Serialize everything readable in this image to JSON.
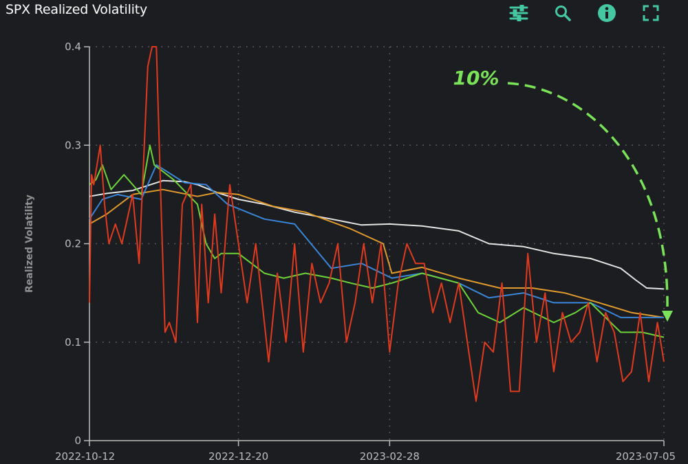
{
  "header": {
    "title": "SPX Realized Volatility",
    "tools": [
      {
        "icon": "sliders-icon"
      },
      {
        "icon": "zoom-icon"
      },
      {
        "icon": "info-icon"
      },
      {
        "icon": "fullscreen-icon"
      }
    ],
    "accent": "#45c7a2"
  },
  "chart_data": {
    "type": "line",
    "title": "SPX Realized Volatility",
    "xlabel": "",
    "ylabel": "Realized Volatility",
    "xlim": [
      "2022-10-12",
      "2023-07-05"
    ],
    "ylim": [
      0,
      0.4
    ],
    "yticks": [
      "0",
      "0.1",
      "0.2",
      "0.3",
      "0.4"
    ],
    "xticks": [
      "2022-10-12",
      "2022-12-20",
      "2023-02-28",
      "2023-07-05"
    ],
    "grid": true,
    "annotation": {
      "text": "10%",
      "color": "#7be35a"
    },
    "series": [
      {
        "color": "#e5e5e5",
        "x": [
          "2022-10-12",
          "2022-10-20",
          "2022-11-01",
          "2022-11-15",
          "2022-11-25",
          "2022-12-01",
          "2022-12-10",
          "2022-12-20",
          "2023-01-01",
          "2023-01-15",
          "2023-02-01",
          "2023-02-15",
          "2023-02-28",
          "2023-03-15",
          "2023-04-01",
          "2023-04-15",
          "2023-05-01",
          "2023-05-15",
          "2023-06-01",
          "2023-06-15",
          "2023-06-22",
          "2023-06-27",
          "2023-07-05"
        ],
        "y": [
          0.248,
          0.251,
          0.254,
          0.264,
          0.263,
          0.26,
          0.252,
          0.245,
          0.24,
          0.232,
          0.225,
          0.219,
          0.22,
          0.218,
          0.213,
          0.2,
          0.197,
          0.19,
          0.185,
          0.175,
          0.163,
          0.155,
          0.154
        ]
      },
      {
        "color": "#e09b2f",
        "x": [
          "2022-10-12",
          "2022-10-20",
          "2022-11-01",
          "2022-11-15",
          "2022-12-01",
          "2022-12-10",
          "2022-12-20",
          "2023-01-05",
          "2023-01-20",
          "2023-02-10",
          "2023-02-25",
          "2023-03-01",
          "2023-03-15",
          "2023-04-01",
          "2023-04-20",
          "2023-05-05",
          "2023-05-20",
          "2023-06-05",
          "2023-06-20",
          "2023-07-05"
        ],
        "y": [
          0.22,
          0.23,
          0.25,
          0.255,
          0.248,
          0.252,
          0.25,
          0.238,
          0.232,
          0.215,
          0.2,
          0.17,
          0.176,
          0.165,
          0.155,
          0.155,
          0.15,
          0.14,
          0.13,
          0.125
        ]
      },
      {
        "color": "#3a86d9",
        "x": [
          "2022-10-12",
          "2022-10-18",
          "2022-10-25",
          "2022-11-05",
          "2022-11-12",
          "2022-11-25",
          "2022-12-05",
          "2022-12-15",
          "2023-01-01",
          "2023-01-15",
          "2023-02-01",
          "2023-02-15",
          "2023-03-01",
          "2023-03-15",
          "2023-04-01",
          "2023-04-15",
          "2023-05-01",
          "2023-05-15",
          "2023-06-01",
          "2023-06-15",
          "2023-07-05"
        ],
        "y": [
          0.225,
          0.245,
          0.25,
          0.245,
          0.28,
          0.262,
          0.26,
          0.24,
          0.225,
          0.22,
          0.175,
          0.18,
          0.165,
          0.17,
          0.16,
          0.145,
          0.15,
          0.14,
          0.14,
          0.125,
          0.125
        ]
      },
      {
        "color": "#6ed43a",
        "x": [
          "2022-10-12",
          "2022-10-15",
          "2022-10-18",
          "2022-10-22",
          "2022-10-28",
          "2022-11-05",
          "2022-11-09",
          "2022-11-11",
          "2022-11-20",
          "2022-12-01",
          "2022-12-05",
          "2022-12-09",
          "2022-12-12",
          "2022-12-20",
          "2023-01-01",
          "2023-01-10",
          "2023-01-20",
          "2023-02-01",
          "2023-02-10",
          "2023-02-20",
          "2023-03-01",
          "2023-03-15",
          "2023-04-01",
          "2023-04-10",
          "2023-04-20",
          "2023-05-01",
          "2023-05-15",
          "2023-05-25",
          "2023-06-01",
          "2023-06-15",
          "2023-06-25",
          "2023-07-05"
        ],
        "y": [
          0.26,
          0.265,
          0.28,
          0.255,
          0.27,
          0.25,
          0.3,
          0.28,
          0.265,
          0.24,
          0.2,
          0.185,
          0.19,
          0.19,
          0.17,
          0.165,
          0.17,
          0.165,
          0.16,
          0.155,
          0.16,
          0.17,
          0.16,
          0.13,
          0.12,
          0.135,
          0.12,
          0.13,
          0.14,
          0.11,
          0.11,
          0.105
        ]
      },
      {
        "color": "#e03a1f",
        "x": [
          "2022-10-12",
          "2022-10-13",
          "2022-10-14",
          "2022-10-17",
          "2022-10-19",
          "2022-10-21",
          "2022-10-24",
          "2022-10-27",
          "2022-11-01",
          "2022-11-04",
          "2022-11-08",
          "2022-11-10",
          "2022-11-12",
          "2022-11-14",
          "2022-11-16",
          "2022-11-18",
          "2022-11-21",
          "2022-11-24",
          "2022-11-28",
          "2022-12-01",
          "2022-12-03",
          "2022-12-06",
          "2022-12-09",
          "2022-12-12",
          "2022-12-16",
          "2022-12-20",
          "2022-12-24",
          "2022-12-28",
          "2023-01-03",
          "2023-01-07",
          "2023-01-11",
          "2023-01-15",
          "2023-01-19",
          "2023-01-23",
          "2023-01-27",
          "2023-01-31",
          "2023-02-04",
          "2023-02-08",
          "2023-02-12",
          "2023-02-16",
          "2023-02-20",
          "2023-02-24",
          "2023-02-28",
          "2023-03-04",
          "2023-03-08",
          "2023-03-12",
          "2023-03-16",
          "2023-03-20",
          "2023-03-24",
          "2023-03-28",
          "2023-04-01",
          "2023-04-05",
          "2023-04-09",
          "2023-04-13",
          "2023-04-17",
          "2023-04-21",
          "2023-04-25",
          "2023-04-29",
          "2023-05-03",
          "2023-05-07",
          "2023-05-11",
          "2023-05-15",
          "2023-05-19",
          "2023-05-23",
          "2023-05-27",
          "2023-05-31",
          "2023-06-04",
          "2023-06-08",
          "2023-06-12",
          "2023-06-16",
          "2023-06-20",
          "2023-06-24",
          "2023-06-28",
          "2023-07-02",
          "2023-07-05"
        ],
        "y": [
          0.14,
          0.27,
          0.26,
          0.3,
          0.24,
          0.2,
          0.22,
          0.2,
          0.25,
          0.18,
          0.38,
          0.4,
          0.4,
          0.25,
          0.11,
          0.12,
          0.1,
          0.24,
          0.26,
          0.12,
          0.24,
          0.14,
          0.23,
          0.15,
          0.26,
          0.2,
          0.14,
          0.2,
          0.08,
          0.17,
          0.1,
          0.2,
          0.09,
          0.18,
          0.14,
          0.16,
          0.2,
          0.1,
          0.14,
          0.2,
          0.14,
          0.2,
          0.09,
          0.16,
          0.2,
          0.18,
          0.18,
          0.13,
          0.16,
          0.12,
          0.16,
          0.1,
          0.04,
          0.1,
          0.09,
          0.16,
          0.05,
          0.05,
          0.19,
          0.1,
          0.15,
          0.07,
          0.13,
          0.1,
          0.11,
          0.14,
          0.08,
          0.13,
          0.11,
          0.06,
          0.07,
          0.13,
          0.06,
          0.12,
          0.08
        ]
      }
    ]
  }
}
